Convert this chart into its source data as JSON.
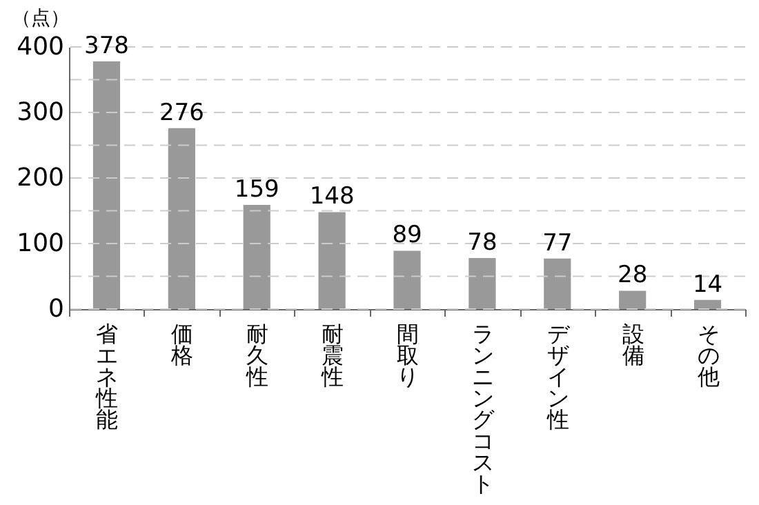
{
  "chart_data": {
    "type": "bar",
    "ylabel": "（点）",
    "categories": [
      "省エネ性能",
      "価格",
      "耐久性",
      "耐震性",
      "間取り",
      "ランニングコスト",
      "デザイン性",
      "設備",
      "その他"
    ],
    "values": [
      378,
      276,
      159,
      148,
      89,
      78,
      77,
      28,
      14
    ],
    "color": "#999999",
    "ylim": [
      0,
      400
    ],
    "yticks": [
      0,
      {
        "value": 50,
        "label": null
      },
      100,
      {
        "value": 150,
        "label": null
      },
      200,
      {
        "value": 250,
        "label": null
      },
      300,
      {
        "value": 350,
        "label": null
      },
      400
    ],
    "grid": "y",
    "data_labels": true
  }
}
